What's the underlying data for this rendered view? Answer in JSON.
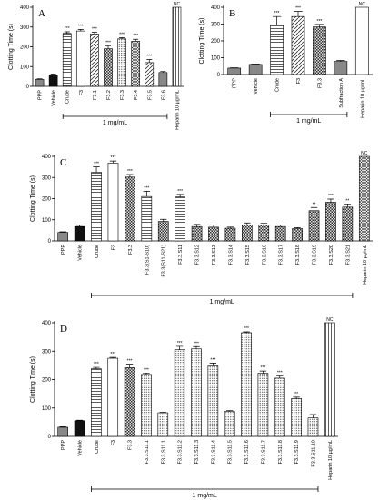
{
  "chart_data": [
    {
      "type": "bar",
      "panel": "A",
      "ylabel": "Clotting Time (s)",
      "bracket_label": "1 mg/mL",
      "categories": [
        "PPP",
        "Vehicle",
        "Crude",
        "F3",
        "F3.1",
        "F3.2",
        "F3.3",
        "F3.4",
        "F3.5",
        "F3.6",
        "Heparin 10 µg/mL"
      ],
      "values": [
        35,
        58,
        268,
        280,
        265,
        190,
        240,
        228,
        120,
        70,
        400
      ],
      "errors": [
        3,
        4,
        8,
        8,
        8,
        15,
        6,
        10,
        15,
        5,
        0
      ],
      "annotations": [
        null,
        null,
        "***",
        "***",
        "***",
        "***",
        "***",
        "***",
        "***",
        null,
        "NC"
      ],
      "bar_styles": [
        "gray",
        "black",
        "hlines",
        "white",
        "dlines",
        "checker",
        "dots",
        "cross",
        "dlines",
        "gray",
        "vlines"
      ],
      "ylim": [
        0,
        400
      ],
      "yticks": [
        0,
        100,
        200,
        300,
        400
      ]
    },
    {
      "type": "bar",
      "panel": "B",
      "ylabel": "Clotting Time (s)",
      "bracket_label": "1 mg/mL",
      "categories": [
        "PPP",
        "Vehicle",
        "Crude",
        "F3",
        "F3.3",
        "Subfraction A",
        "Heparin 10 µg/mL"
      ],
      "values": [
        38,
        60,
        295,
        345,
        283,
        78,
        400
      ],
      "errors": [
        2,
        2,
        50,
        30,
        15,
        5,
        0
      ],
      "annotations": [
        null,
        null,
        "***",
        "***",
        "***",
        null,
        "NC"
      ],
      "bar_styles": [
        "gray",
        "gray",
        "hlines",
        "dlines",
        "checker",
        "gray",
        "white"
      ],
      "ylim": [
        0,
        400
      ],
      "yticks": [
        0,
        100,
        200,
        300,
        400
      ]
    },
    {
      "type": "bar",
      "panel": "C",
      "ylabel": "Clotting Time (s)",
      "bracket_label": "1 mg/mL",
      "categories": [
        "PPP",
        "Vehicle",
        "Crude",
        "F3",
        "F3.3",
        "F3.3(S1-S10)",
        "F3.3(S11-S21)",
        "F3.3.S11",
        "F3.3.S12",
        "F3.3.S13",
        "F3.3.S14",
        "F3.3.S15",
        "F3.3.S16",
        "F3.3.S17",
        "F3.3.S18",
        "F3.3.S19",
        "F3.3.S20",
        "F3.3.S21",
        "Heparin 10 µg/mL"
      ],
      "values": [
        40,
        68,
        325,
        368,
        302,
        210,
        92,
        208,
        68,
        65,
        60,
        75,
        75,
        68,
        58,
        143,
        183,
        160,
        400
      ],
      "errors": [
        3,
        6,
        25,
        10,
        12,
        25,
        10,
        12,
        10,
        10,
        5,
        10,
        8,
        8,
        5,
        15,
        15,
        15,
        0
      ],
      "annotations": [
        null,
        null,
        "***",
        "***",
        "***",
        "***",
        null,
        "***",
        null,
        null,
        null,
        null,
        null,
        null,
        null,
        "**",
        "***",
        "**",
        "NC"
      ],
      "bar_styles": [
        "gray",
        "black",
        "hlines",
        "white",
        "checker",
        "hlines",
        "checker",
        "hlines",
        "checker",
        "checker",
        "checker",
        "checker",
        "checker",
        "checker",
        "checker",
        "checker",
        "checker",
        "checker",
        "cross"
      ],
      "ylim": [
        0,
        400
      ],
      "yticks": [
        0,
        100,
        200,
        300,
        400
      ]
    },
    {
      "type": "bar",
      "panel": "D",
      "ylabel": "Clotting Time (s)",
      "bracket_label": "1 mg/mL",
      "categories": [
        "PPP",
        "Vehicle",
        "Crude",
        "F3",
        "F3.3",
        "F3.3.S11.1",
        "F3.3.S11.1",
        "F3.3.S11.2",
        "F3.3.S11.3",
        "F3.3.S11.4",
        "F3.3.S11.5",
        "F3.3.S11.6",
        "F3.3.S11.7",
        "F3.3.S11.8",
        "F3.3.S11.9",
        "F3.3.S11.10",
        "Heparin 10 µg/mL"
      ],
      "values": [
        32,
        55,
        238,
        275,
        242,
        218,
        83,
        305,
        308,
        248,
        88,
        365,
        222,
        205,
        133,
        65,
        400
      ],
      "errors": [
        2,
        2,
        5,
        3,
        12,
        5,
        2,
        12,
        8,
        10,
        3,
        3,
        8,
        8,
        5,
        12,
        0
      ],
      "annotations": [
        null,
        null,
        "***",
        "***",
        "***",
        "***",
        null,
        "***",
        "***",
        "***",
        null,
        "***",
        "***",
        "***",
        "**",
        null,
        "NC"
      ],
      "bar_styles": [
        "gray",
        "black",
        "hlines",
        "white",
        "checker",
        "dots",
        "dots",
        "dots",
        "dots",
        "dots",
        "dots",
        "dots",
        "dots",
        "dots",
        "dots",
        "dots",
        "vlines"
      ],
      "ylim": [
        0,
        400
      ],
      "yticks": [
        0,
        100,
        200,
        300,
        400
      ]
    }
  ]
}
